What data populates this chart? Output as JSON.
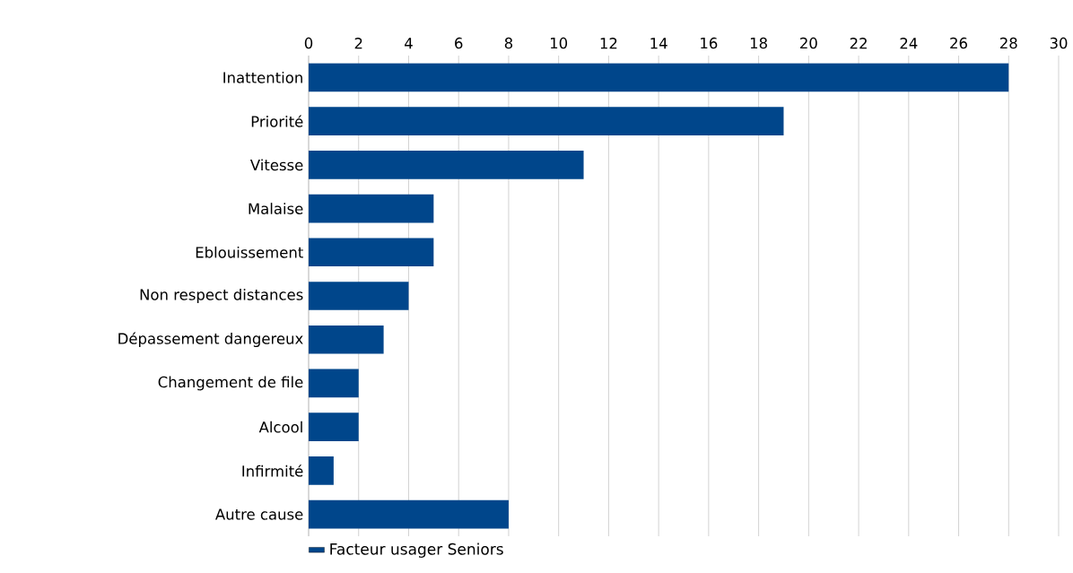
{
  "chart_data": {
    "type": "bar",
    "orientation": "horizontal",
    "categories": [
      "Inattention",
      "Priorité",
      "Vitesse",
      "Malaise",
      "Eblouissement",
      "Non respect distances",
      "Dépassement dangereux",
      "Changement de file",
      "Alcool",
      "Infirmité",
      "Autre cause"
    ],
    "series": [
      {
        "name": "Facteur usager Seniors",
        "color": "#00468b",
        "values": [
          28,
          19,
          11,
          5,
          5,
          4,
          3,
          2,
          2,
          1,
          8
        ]
      }
    ],
    "xlim": [
      0,
      30
    ],
    "xticks": [
      0,
      2,
      4,
      6,
      8,
      10,
      12,
      14,
      16,
      18,
      20,
      22,
      24,
      26,
      28,
      30
    ],
    "grid": "x",
    "legend": "bottom left"
  }
}
